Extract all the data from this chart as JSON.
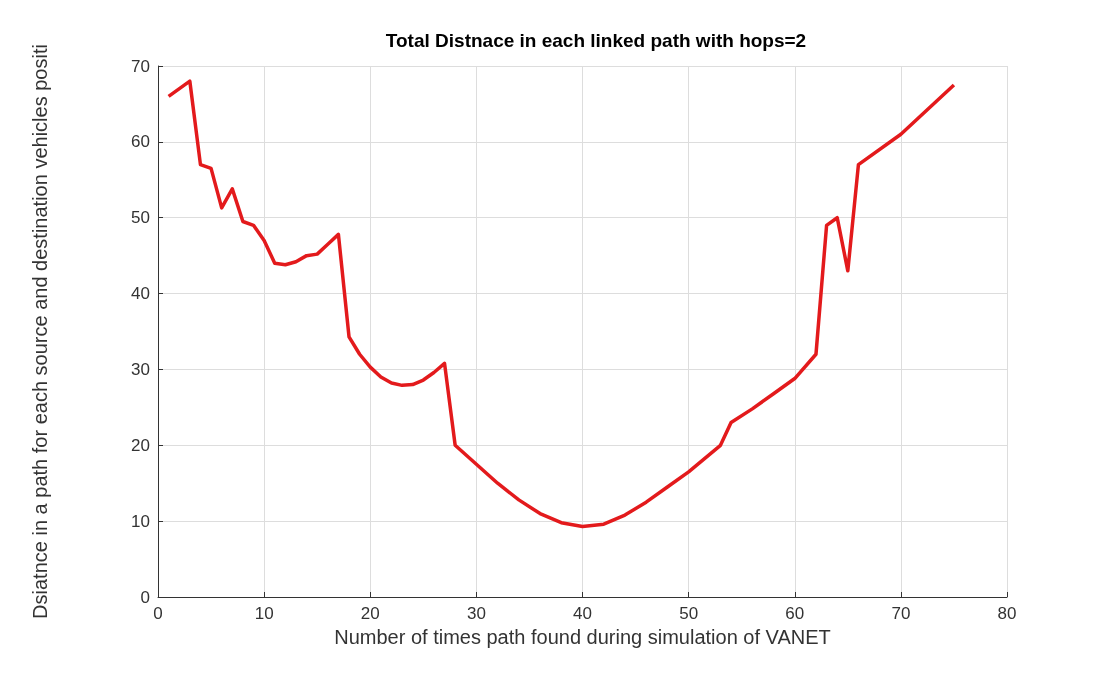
{
  "chart_data": {
    "type": "line",
    "title": "Total Distnace in each linked path with hops=2",
    "xlabel": "Number of times path found during simulation of VANET",
    "ylabel": "Dsiatnce in a path for each source and destination vehicles positi",
    "x": [
      1,
      3,
      4,
      5,
      6,
      7,
      8,
      9,
      10,
      11,
      12,
      13,
      14,
      15,
      16,
      17,
      18,
      19,
      20,
      21,
      22,
      23,
      24,
      25,
      26,
      27,
      28,
      30,
      32,
      34,
      36,
      38,
      40,
      42,
      44,
      46,
      48,
      50,
      53,
      54,
      56,
      58,
      60,
      62,
      63,
      64,
      65,
      66,
      70,
      75
    ],
    "series": [
      {
        "color": "#e31a1c",
        "values": [
          66,
          68,
          57,
          56.5,
          51.3,
          53.8,
          49.5,
          49,
          47,
          44,
          43.8,
          44.2,
          45,
          45.2,
          46.5,
          47.8,
          34.3,
          32,
          30.3,
          29,
          28.2,
          27.9,
          28,
          28.6,
          29.6,
          30.8,
          20,
          17.5,
          15,
          12.8,
          11,
          9.8,
          9.3,
          9.6,
          10.8,
          12.5,
          14.5,
          16.5,
          20,
          23,
          24.8,
          26.8,
          28.8,
          32,
          49,
          50,
          43,
          57,
          61,
          67.5
        ]
      }
    ],
    "xlim": [
      0,
      80
    ],
    "xticks": [
      0,
      10,
      20,
      30,
      40,
      50,
      60,
      70,
      80
    ],
    "ylim": [
      0,
      70
    ],
    "yticks": [
      0,
      10,
      20,
      30,
      40,
      50,
      60,
      70
    ],
    "grid": true,
    "marker": "none",
    "line_style": "solid"
  }
}
